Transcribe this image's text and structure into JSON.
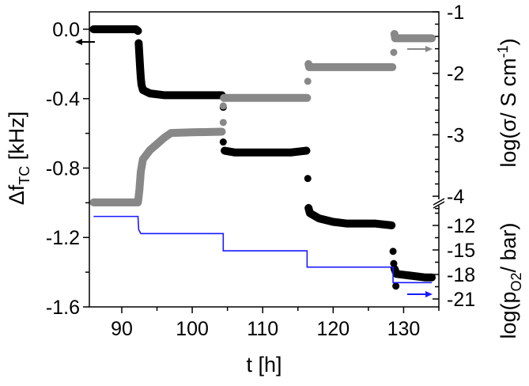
{
  "chart_data": {
    "type": "scatter",
    "xlabel": "t [h]",
    "xlim": [
      85.4,
      135
    ],
    "xticks": [
      90,
      100,
      110,
      120,
      130
    ],
    "ylabel_left": "Δf",
    "ylabel_left_sub": "TC",
    "ylabel_left_unit": " [kHz]",
    "ylim_left": [
      -1.6,
      0.1
    ],
    "yticks_left": [
      "0.0",
      "-0.4",
      "-0.8",
      "-1.2",
      "-1.6"
    ],
    "ylabel_right_upper": "log(σ/ S cm",
    "ylabel_right_upper_sup": "-1",
    "ylabel_right_upper_end": ")",
    "ylim_right_upper": [
      -4.15,
      -1
    ],
    "yticks_right_upper": [
      "-1",
      "-2",
      "-3",
      "-4"
    ],
    "ylabel_right_lower": "log(p",
    "ylabel_right_lower_sub": "O2",
    "ylabel_right_lower_end": "/ bar)",
    "ylim_right_lower": [
      -22,
      -11
    ],
    "yticks_right_lower": [
      "-12",
      "-15",
      "-18",
      "-21"
    ],
    "axis_break": "right axis broken between -4 and -12",
    "colors": {
      "freq": "#000000",
      "conductivity": "#888888",
      "po2": "#1a1aff"
    },
    "series": [
      {
        "axis": "left",
        "marker": "circle",
        "color": "#000000",
        "segments": [
          [
            [
              86,
              0.0
            ],
            [
              88,
              0.0
            ],
            [
              90,
              0.0
            ],
            [
              92,
              0.0
            ],
            [
              92.3,
              -0.01
            ]
          ],
          [
            [
              92.4,
              -0.08
            ],
            [
              92.5,
              -0.15
            ],
            [
              92.6,
              -0.22
            ],
            [
              92.7,
              -0.28
            ],
            [
              92.8,
              -0.32
            ],
            [
              93,
              -0.35
            ],
            [
              94,
              -0.37
            ],
            [
              96,
              -0.38
            ],
            [
              98,
              -0.38
            ],
            [
              100,
              -0.38
            ],
            [
              102,
              -0.38
            ],
            [
              104.2,
              -0.38
            ]
          ],
          [
            [
              104.4,
              -0.45
            ]
          ],
          [
            [
              104.4,
              -0.65
            ]
          ],
          [
            [
              104.6,
              -0.7
            ],
            [
              106,
              -0.71
            ],
            [
              108,
              -0.71
            ],
            [
              110,
              -0.71
            ],
            [
              112,
              -0.71
            ],
            [
              114,
              -0.71
            ],
            [
              116.2,
              -0.7
            ]
          ],
          [
            [
              116.4,
              -0.86
            ]
          ],
          [
            [
              116.5,
              -1.03
            ],
            [
              116.7,
              -1.06
            ],
            [
              118,
              -1.09
            ],
            [
              120,
              -1.11
            ],
            [
              122,
              -1.12
            ],
            [
              124,
              -1.12
            ],
            [
              126,
              -1.12
            ],
            [
              128.3,
              -1.13
            ]
          ],
          [
            [
              128.5,
              -1.28
            ]
          ],
          [
            [
              128.6,
              -1.35
            ]
          ],
          [
            [
              128.9,
              -1.48
            ]
          ],
          [
            [
              128.7,
              -1.38
            ],
            [
              129,
              -1.41
            ],
            [
              131,
              -1.42
            ],
            [
              133,
              -1.43
            ],
            [
              134,
              -1.43
            ]
          ]
        ]
      },
      {
        "axis": "right-upper",
        "marker": "circle",
        "color": "#888888",
        "segments": [
          [
            [
              86,
              -4.1
            ],
            [
              92.3,
              -4.1
            ],
            [
              92.5,
              -3.9
            ],
            [
              92.7,
              -3.6
            ],
            [
              93,
              -3.4
            ],
            [
              94,
              -3.25
            ],
            [
              95,
              -3.15
            ],
            [
              96,
              -3.05
            ],
            [
              97,
              -2.97
            ],
            [
              100,
              -2.96
            ],
            [
              104.2,
              -2.95
            ]
          ],
          [
            [
              104.4,
              -2.8
            ]
          ],
          [
            [
              104.4,
              -2.53
            ]
          ],
          [
            [
              104.5,
              -2.4
            ],
            [
              110,
              -2.4
            ],
            [
              116.3,
              -2.4
            ]
          ],
          [
            [
              116.4,
              -2.13
            ]
          ],
          [
            [
              116.5,
              -1.85
            ],
            [
              116.6,
              -1.9
            ],
            [
              122,
              -1.9
            ],
            [
              128.4,
              -1.9
            ]
          ],
          [
            [
              128.6,
              -1.66
            ]
          ],
          [
            [
              128.7,
              -1.36
            ],
            [
              128.8,
              -1.43
            ],
            [
              134,
              -1.43
            ]
          ]
        ]
      },
      {
        "axis": "right-lower",
        "marker": "line",
        "color": "#1a1aff",
        "points": [
          [
            86,
            -10.9
          ],
          [
            92.3,
            -10.9
          ],
          [
            92.4,
            -12.5
          ],
          [
            92.7,
            -13
          ],
          [
            104.4,
            -13
          ],
          [
            104.4,
            -15.1
          ],
          [
            116.3,
            -15.1
          ],
          [
            116.3,
            -17.1
          ],
          [
            128.5,
            -17.1
          ],
          [
            128.5,
            -19
          ],
          [
            134,
            -19
          ]
        ]
      }
    ],
    "arrows": [
      {
        "series": "freq",
        "direction": "left",
        "color": "#000000"
      },
      {
        "series": "conductivity",
        "direction": "right",
        "color": "#888888"
      },
      {
        "series": "po2",
        "direction": "right",
        "color": "#1a1aff"
      }
    ]
  }
}
